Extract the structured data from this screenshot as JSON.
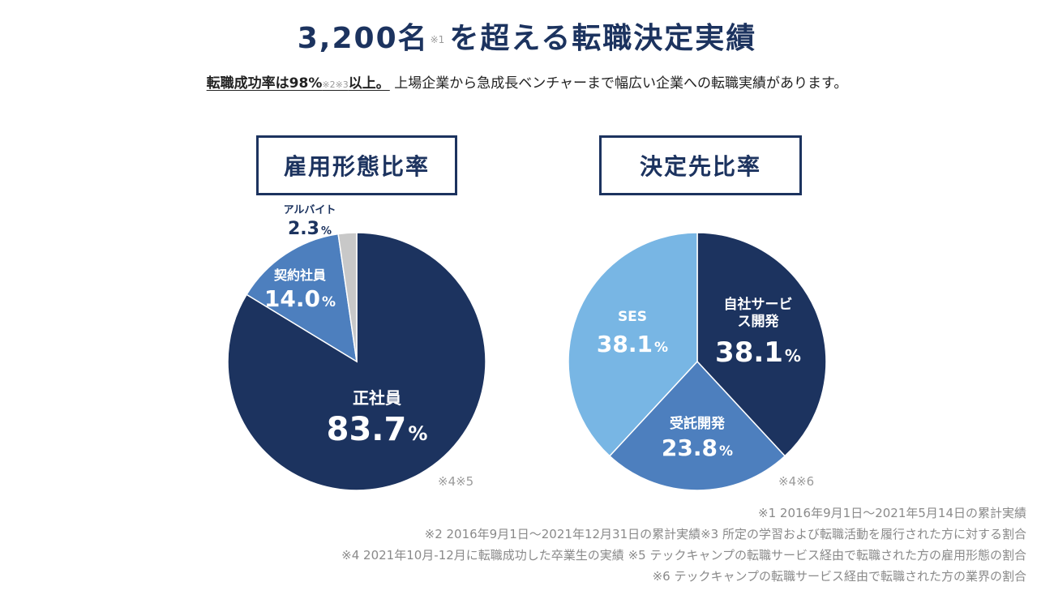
{
  "header": {
    "title_main": "3,200名",
    "title_note": "※1",
    "title_rest": "を超える転職決定実績",
    "subtitle_highlight": "転職成功率は98%",
    "subtitle_note": "※2※3",
    "subtitle_highlight_end": "以上。",
    "subtitle_rest": "上場企業から急成長ベンチャーまで幅広い企業への転職実績があります。"
  },
  "colors": {
    "navy": "#1c335f",
    "mid_blue": "#4d7fbe",
    "light_blue": "#78b6e4",
    "gray": "#c8c8c8"
  },
  "chart_data": [
    {
      "type": "pie",
      "title": "雇用形態比率",
      "note": "※4※5",
      "slices": [
        {
          "label": "正社員",
          "value": 83.7,
          "display": "83.7",
          "color": "#1c335f"
        },
        {
          "label": "契約社員",
          "value": 14.0,
          "display": "14.0",
          "color": "#4d7fbe"
        },
        {
          "label": "アルバイト",
          "value": 2.3,
          "display": "2.3",
          "color": "#c8c8c8"
        }
      ],
      "unit": "%"
    },
    {
      "type": "pie",
      "title": "決定先比率",
      "note": "※4※6",
      "slices": [
        {
          "label": "自社サービス開発",
          "value": 38.1,
          "display": "38.1",
          "color": "#1c335f"
        },
        {
          "label": "受託開発",
          "value": 23.8,
          "display": "23.8",
          "color": "#4d7fbe"
        },
        {
          "label": "SES",
          "value": 38.1,
          "display": "38.1",
          "color": "#78b6e4"
        }
      ],
      "unit": "%"
    }
  ],
  "footnotes": [
    "※1 2016年9月1日〜2021年5月14日の累計実績",
    "※2 2016年9月1日〜2021年12月31日の累計実績※3 所定の学習および転職活動を履行された方に対する割合",
    "※4 2021年10月-12月に転職成功した卒業生の実績 ※5 テックキャンプの転職サービス経由で転職された方の雇用形態の割合",
    "※6 テックキャンプの転職サービス経由で転職された方の業界の割合"
  ]
}
